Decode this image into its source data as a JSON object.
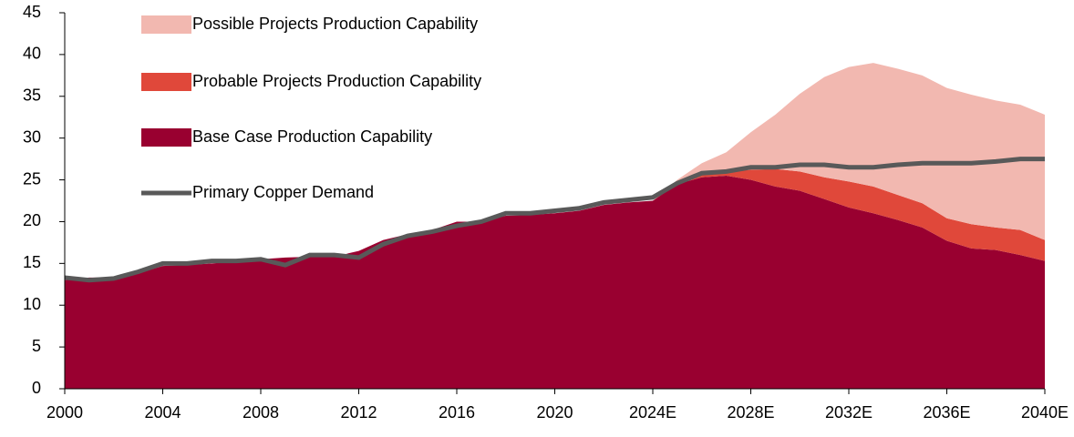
{
  "chart_data": {
    "type": "stacked_area_line",
    "categories": [
      "2000",
      null,
      null,
      null,
      "2004",
      null,
      null,
      null,
      "2008",
      null,
      null,
      null,
      "2012",
      null,
      null,
      null,
      "2016",
      null,
      null,
      null,
      "2020",
      null,
      null,
      null,
      "2024E",
      null,
      null,
      null,
      "2028E",
      null,
      null,
      null,
      "2032E",
      null,
      null,
      null,
      "2036E",
      null,
      null,
      null,
      "2040E"
    ],
    "series": [
      {
        "name": "Base Case Production Capability",
        "color": "#990030",
        "kind": "area",
        "values": [
          13.0,
          13.3,
          13.3,
          13.8,
          14.7,
          14.8,
          15.0,
          15.2,
          15.5,
          15.7,
          15.8,
          15.8,
          16.5,
          17.8,
          18.5,
          19.0,
          20.0,
          20.0,
          20.7,
          20.8,
          21.0,
          21.3,
          22.0,
          22.3,
          22.5,
          24.5,
          25.3,
          25.5,
          25.0,
          24.2,
          23.7,
          22.7,
          21.7,
          21.0,
          20.2,
          19.3,
          17.7,
          16.8,
          16.6,
          16.0,
          15.3
        ]
      },
      {
        "name": "Probable Projects Production Capability",
        "color": "#e0483a",
        "kind": "area",
        "values": [
          0,
          0,
          0,
          0,
          0,
          0,
          0,
          0,
          0,
          0,
          0,
          0,
          0,
          0,
          0,
          0,
          0,
          0,
          0,
          0,
          0,
          0,
          0,
          0,
          0,
          0.2,
          0.5,
          0.5,
          1.2,
          2.1,
          2.3,
          2.6,
          3.1,
          3.2,
          3.0,
          2.9,
          2.7,
          2.9,
          2.7,
          3.0,
          2.5
        ]
      },
      {
        "name": "Possible Projects Production Capability",
        "color": "#f2b8b0",
        "kind": "area",
        "values": [
          0,
          0,
          0,
          0,
          0,
          0,
          0,
          0,
          0,
          0,
          0,
          0,
          0,
          0,
          0,
          0,
          0,
          0,
          0,
          0,
          0,
          0,
          0,
          0,
          0,
          0.3,
          1.2,
          2.3,
          4.5,
          6.5,
          9.3,
          12.0,
          13.7,
          14.8,
          15.1,
          15.3,
          15.6,
          15.5,
          15.2,
          15.0,
          15.0
        ]
      },
      {
        "name": "Primary Copper Demand",
        "color": "#595959",
        "kind": "line",
        "values": [
          13.3,
          13.0,
          13.2,
          14.0,
          15.0,
          15.0,
          15.3,
          15.3,
          15.5,
          14.8,
          16.0,
          16.0,
          15.7,
          17.3,
          18.3,
          18.8,
          19.5,
          20.0,
          21.0,
          21.0,
          21.3,
          21.6,
          22.3,
          22.6,
          22.9,
          24.6,
          25.8,
          26.0,
          26.5,
          26.5,
          26.8,
          26.8,
          26.5,
          26.5,
          26.8,
          27.0,
          27.0,
          27.0,
          27.2,
          27.5,
          27.5
        ]
      }
    ],
    "ylim": [
      0,
      45
    ],
    "yticks": [
      0,
      5,
      10,
      15,
      20,
      25,
      30,
      35,
      40,
      45
    ]
  }
}
